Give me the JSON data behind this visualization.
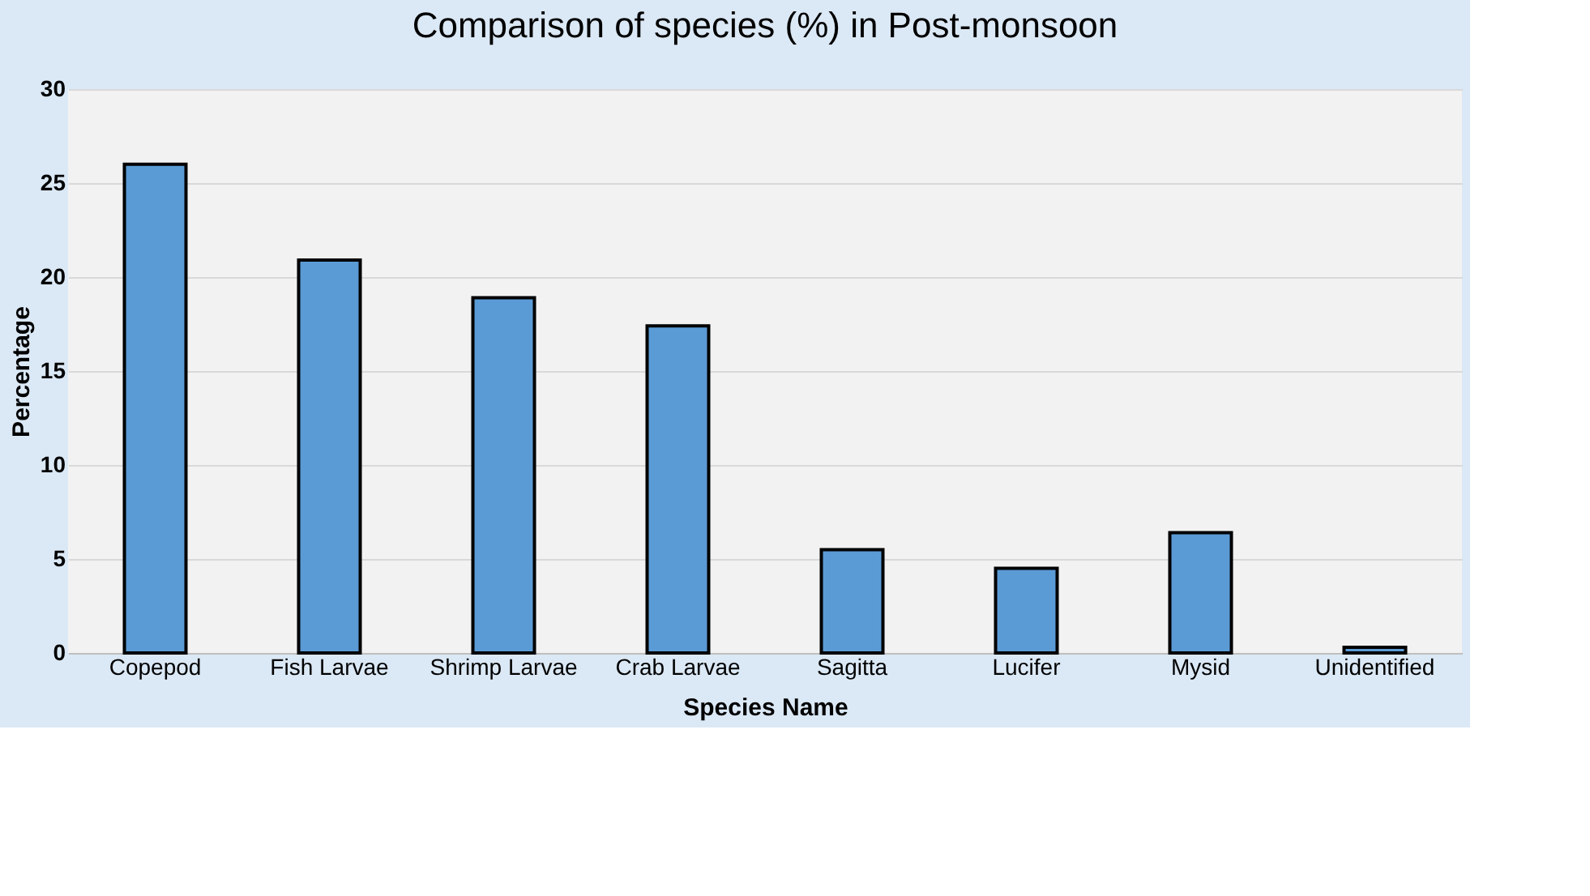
{
  "chart_data": {
    "type": "bar",
    "title": "Comparison of species (%) in Post-monsoon",
    "xlabel": "Species Name",
    "ylabel": "Percentage",
    "categories": [
      "Copepod",
      "Fish Larvae",
      "Shrimp Larvae",
      "Crab Larvae",
      "Sagitta",
      "Lucifer",
      "Mysid",
      "Unidentified"
    ],
    "values": [
      26,
      20.9,
      18.9,
      17.4,
      5.5,
      4.5,
      6.4,
      0.3
    ],
    "color": "#5b9bd5",
    "ylim": [
      0,
      30
    ],
    "yticks": [
      0,
      5,
      10,
      15,
      20,
      25,
      30
    ],
    "grid": "y"
  }
}
